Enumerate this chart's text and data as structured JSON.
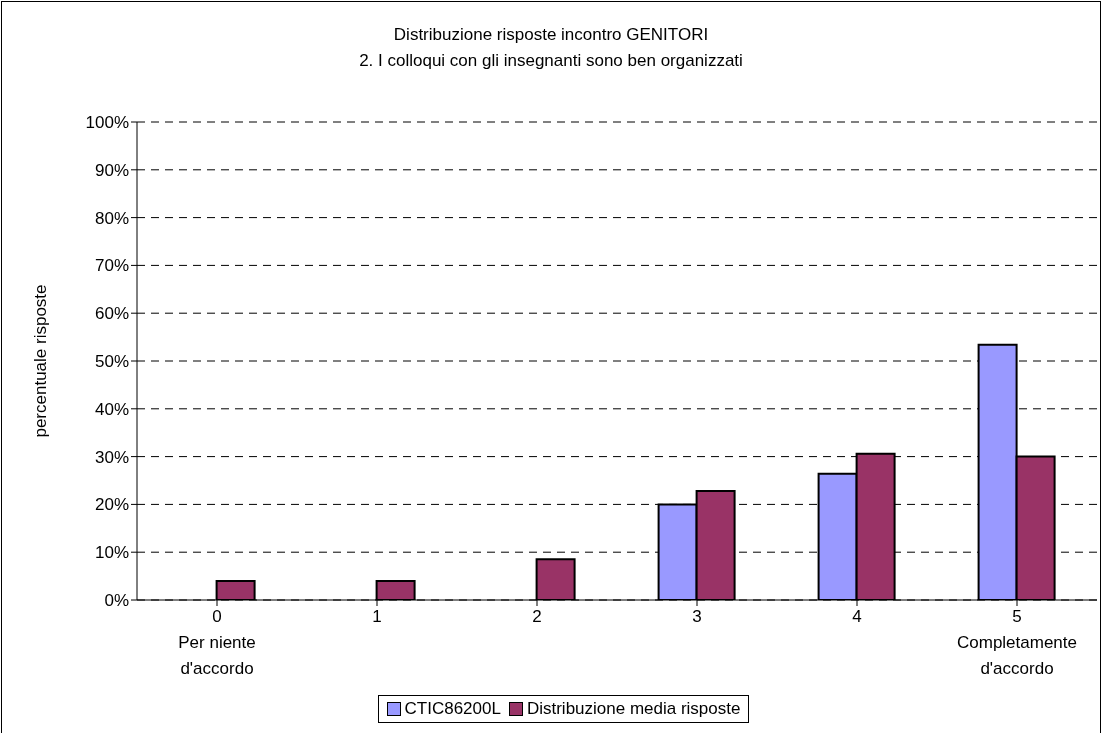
{
  "chart_data": {
    "type": "bar",
    "title": "Distribuzione risposte incontro GENITORI",
    "subtitle": "2. I colloqui con gli insegnanti sono ben organizzati",
    "ylabel": "percentuale risposte",
    "categories": [
      "0\nPer niente\nd'accordo",
      "1",
      "2",
      "3",
      "4",
      "5\nCompletamente\nd'accordo"
    ],
    "series": [
      {
        "name": "CTIC86200L",
        "color": "#9999ff",
        "values": [
          0,
          0,
          0,
          20,
          26.4,
          53.4
        ]
      },
      {
        "name": "Distribuzione media risposte",
        "color": "#993366",
        "values": [
          4,
          4,
          8.5,
          22.8,
          30.6,
          30
        ]
      }
    ],
    "ylim": [
      0,
      100
    ],
    "yticks": [
      {
        "value": 0,
        "label": "0%"
      },
      {
        "value": 10,
        "label": "10%"
      },
      {
        "value": 20,
        "label": "20%"
      },
      {
        "value": 30,
        "label": "30%"
      },
      {
        "value": 40,
        "label": "40%"
      },
      {
        "value": 50,
        "label": "50%"
      },
      {
        "value": 60,
        "label": "60%"
      },
      {
        "value": 70,
        "label": "70%"
      },
      {
        "value": 80,
        "label": "80%"
      },
      {
        "value": 90,
        "label": "90%"
      },
      {
        "value": 100,
        "label": "100%"
      }
    ],
    "grid": "y",
    "legend": "bottom"
  }
}
